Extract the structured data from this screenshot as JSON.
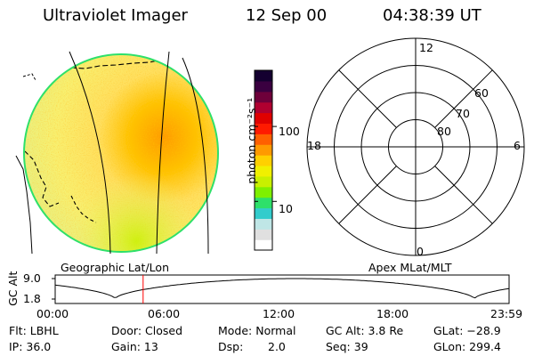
{
  "header": {
    "instrument": "Ultraviolet Imager",
    "date": "12 Sep 00",
    "time": "04:38:39 UT"
  },
  "colorbar": {
    "unit_label": "photon cm⁻²s⁻¹",
    "ticks": [
      {
        "label": "100",
        "value": 100
      },
      {
        "label": "10",
        "value": 10
      }
    ],
    "colors": [
      "#ffffff",
      "#e0e0e0",
      "#bfe6e6",
      "#33cccc",
      "#2ee06a",
      "#7ff000",
      "#c8f000",
      "#f0f000",
      "#ffd000",
      "#ff9a00",
      "#ff6000",
      "#ff1a00",
      "#e00000",
      "#b00030",
      "#6e003a",
      "#3a0040",
      "#140030"
    ]
  },
  "polar_grid": {
    "mlt_labels": [
      {
        "label": "12",
        "mlt": 12
      },
      {
        "label": "18",
        "mlt": 18
      },
      {
        "label": "6",
        "mlt": 6
      },
      {
        "label": "0",
        "mlt": 0
      }
    ],
    "lat_labels": [
      {
        "label": "60",
        "mlat": 60
      },
      {
        "label": "70",
        "mlat": 70
      },
      {
        "label": "80",
        "mlat": 80
      }
    ]
  },
  "altitude_plot": {
    "left_caption": "Geographic Lat/Lon",
    "right_caption": "Apex MLat/MLT",
    "y_axis_label": "GC Alt",
    "y_ticks": [
      "9.0",
      "1.8"
    ],
    "x_ticks": [
      "00:00",
      "06:00",
      "12:00",
      "18:00",
      "23:59"
    ],
    "marker_time": "04:38:39",
    "marker_color": "#ff0000"
  },
  "info": {
    "flt": "Flt: LBHL",
    "door": "Door: Closed",
    "mode": "Mode: Normal",
    "gc_alt": "GC Alt: 3.8 Re",
    "glat": "GLat: −28.9",
    "ip": "IP: 36.0",
    "gain": "Gain: 13",
    "dsp_label": "Dsp:",
    "dsp_value": "2.0",
    "seq": "Seq: 39",
    "glon": "GLon: 299.4"
  }
}
